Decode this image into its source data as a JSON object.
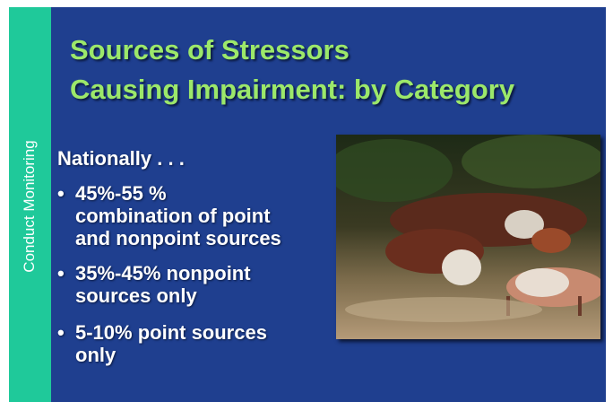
{
  "sidebar_label": "Conduct Monitoring",
  "title_lines": [
    "Sources of Stressors",
    "Causing Impairment: by Category"
  ],
  "intro": "Nationally . . .",
  "bullets": [
    {
      "marker": "•",
      "lines": [
        "45%-55 %",
        "combination of point",
        "and nonpoint sources"
      ]
    },
    {
      "marker": "•",
      "lines": [
        "35%-45% nonpoint",
        "sources only"
      ]
    },
    {
      "marker": "•",
      "lines": [
        "5-10% point sources",
        "only"
      ]
    }
  ]
}
